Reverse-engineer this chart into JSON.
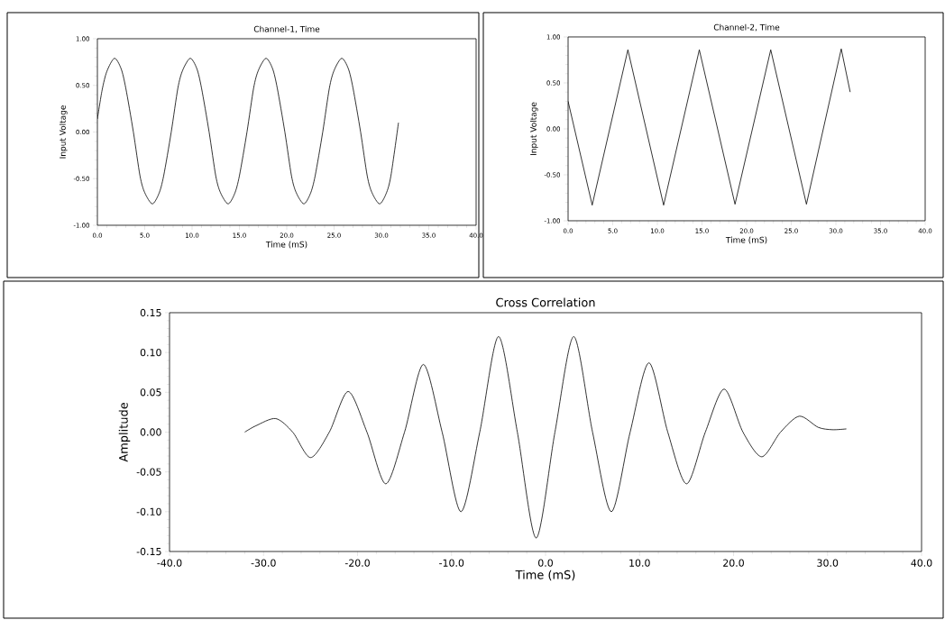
{
  "chart_data": [
    {
      "type": "line",
      "title": "Channel-1, Time",
      "xlabel": "Time (mS)",
      "ylabel": "Input Voltage",
      "color": "#000000",
      "x": [
        0,
        0.5,
        1,
        1.8,
        2.5,
        3,
        3.8,
        4.5,
        5,
        5.8,
        6.5,
        7,
        7.8,
        8.5,
        9,
        9.8,
        10.5,
        11,
        11.8,
        12.5,
        13,
        13.8,
        14.5,
        15,
        15.8,
        16.5,
        17,
        17.8,
        18.5,
        19,
        19.8,
        20.5,
        21,
        21.8,
        22.5,
        23,
        23.8,
        24.5,
        25,
        25.8,
        26.5,
        27,
        27.8,
        28.5,
        29,
        29.8,
        30.5,
        31,
        31.8
      ],
      "values": [
        0.14,
        0.45,
        0.65,
        0.79,
        0.68,
        0.47,
        0.0,
        -0.47,
        -0.65,
        -0.77,
        -0.66,
        -0.47,
        0.0,
        0.47,
        0.66,
        0.79,
        0.68,
        0.47,
        0.0,
        -0.47,
        -0.65,
        -0.77,
        -0.66,
        -0.47,
        0.0,
        0.47,
        0.66,
        0.79,
        0.68,
        0.47,
        0.0,
        -0.47,
        -0.65,
        -0.77,
        -0.66,
        -0.47,
        0.0,
        0.47,
        0.66,
        0.79,
        0.68,
        0.47,
        0.0,
        -0.47,
        -0.65,
        -0.77,
        -0.66,
        -0.47,
        0.1
      ],
      "xlim": [
        0,
        40
      ],
      "ylim": [
        -1,
        1
      ],
      "xticks": [
        {
          "value": 0,
          "label": "0.0"
        },
        {
          "value": 5,
          "label": "5.0"
        },
        {
          "value": 10,
          "label": "10.0"
        },
        {
          "value": 15,
          "label": "15.0"
        },
        {
          "value": 20,
          "label": "20.0"
        },
        {
          "value": 25,
          "label": "25.0"
        },
        {
          "value": 30,
          "label": "30.0"
        },
        {
          "value": 35,
          "label": "35.0"
        },
        {
          "value": 40,
          "label": "40.0"
        }
      ],
      "yticks": [
        {
          "value": -1,
          "label": "-1.00"
        },
        {
          "value": -0.5,
          "label": "-0.50"
        },
        {
          "value": 0,
          "label": "0.00"
        },
        {
          "value": 0.5,
          "label": "0.50"
        },
        {
          "value": 1,
          "label": "1.00"
        }
      ]
    },
    {
      "type": "line",
      "title": "Channel-2, Time",
      "xlabel": "Time (mS)",
      "ylabel": "Input Voltage",
      "color": "#000000",
      "x": [
        0,
        2.7,
        6.7,
        10.7,
        14.7,
        18.7,
        22.7,
        26.7,
        30.6,
        31.6
      ],
      "values": [
        0.3,
        -0.83,
        0.86,
        -0.83,
        0.86,
        -0.82,
        0.86,
        -0.82,
        0.87,
        0.4
      ],
      "xlim": [
        0,
        40
      ],
      "ylim": [
        -1,
        1
      ],
      "xticks": [
        {
          "value": 0,
          "label": "0.0"
        },
        {
          "value": 5,
          "label": "5.0"
        },
        {
          "value": 10,
          "label": "10.0"
        },
        {
          "value": 15,
          "label": "15.0"
        },
        {
          "value": 20,
          "label": "20.0"
        },
        {
          "value": 25,
          "label": "25.0"
        },
        {
          "value": 30,
          "label": "30.0"
        },
        {
          "value": 35,
          "label": "35.0"
        },
        {
          "value": 40,
          "label": "40.0"
        }
      ],
      "yticks": [
        {
          "value": -1,
          "label": "-1.00"
        },
        {
          "value": -0.5,
          "label": "-0.50"
        },
        {
          "value": 0,
          "label": "0.00"
        },
        {
          "value": 0.5,
          "label": "0.50"
        },
        {
          "value": 1,
          "label": "1.00"
        }
      ]
    },
    {
      "type": "line",
      "title": "Cross Correlation",
      "xlabel": "Time (mS)",
      "ylabel": "Amplitude",
      "color": "#000000",
      "x": [
        -32,
        -30.8,
        -28.7,
        -26.9,
        -25,
        -23,
        -21,
        -19,
        -17,
        -15,
        -13,
        -11,
        -9,
        -7,
        -5,
        -3,
        -1,
        1,
        3,
        5,
        7,
        9,
        11,
        13,
        15,
        17,
        19,
        21,
        23,
        25,
        27,
        29,
        30.5,
        32
      ],
      "values": [
        0.0,
        0.008,
        0.017,
        0.0,
        -0.032,
        0.0,
        0.051,
        0.0,
        -0.065,
        0.0,
        0.085,
        0.0,
        -0.1,
        0.0,
        0.12,
        0.0,
        -0.133,
        0.0,
        0.12,
        0.0,
        -0.1,
        0.0,
        0.087,
        0.0,
        -0.065,
        0.0,
        0.054,
        0.0,
        -0.031,
        0.0,
        0.02,
        0.006,
        0.003,
        0.004
      ],
      "xlim": [
        -40,
        40
      ],
      "ylim": [
        -0.15,
        0.15
      ],
      "xticks": [
        {
          "value": -40,
          "label": "-40.0"
        },
        {
          "value": -30,
          "label": "-30.0"
        },
        {
          "value": -20,
          "label": "-20.0"
        },
        {
          "value": -10,
          "label": "-10.0"
        },
        {
          "value": 0,
          "label": "0.0"
        },
        {
          "value": 10,
          "label": "10.0"
        },
        {
          "value": 20,
          "label": "20.0"
        },
        {
          "value": 30,
          "label": "30.0"
        },
        {
          "value": 40,
          "label": "40.0"
        }
      ],
      "yticks": [
        {
          "value": -0.15,
          "label": "-0.15"
        },
        {
          "value": -0.1,
          "label": "-0.10"
        },
        {
          "value": -0.05,
          "label": "-0.05"
        },
        {
          "value": 0,
          "label": "0.00"
        },
        {
          "value": 0.05,
          "label": "0.05"
        },
        {
          "value": 0.1,
          "label": "0.10"
        },
        {
          "value": 0.15,
          "label": "0.15"
        }
      ]
    }
  ]
}
